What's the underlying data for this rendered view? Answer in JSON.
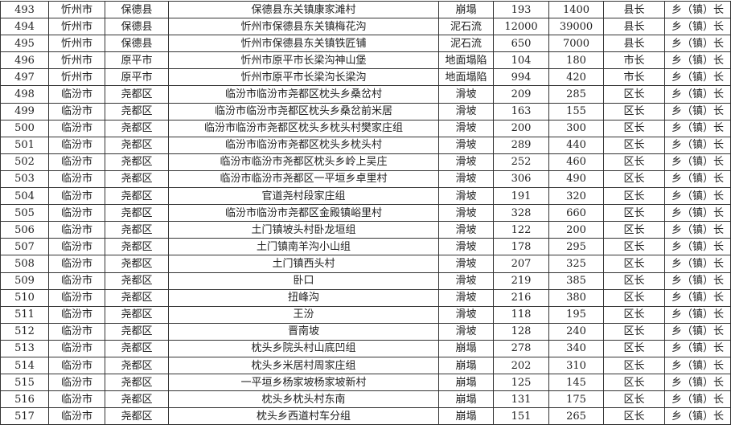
{
  "rows": [
    [
      "493",
      "忻州市",
      "保德县",
      "保德县东关镇康家滩村",
      "崩塌",
      "193",
      "1400",
      "县长",
      "乡（镇）长"
    ],
    [
      "494",
      "忻州市",
      "保德县",
      "忻州市保德县东关镇梅花沟",
      "泥石流",
      "12000",
      "39000",
      "县长",
      "乡（镇）长"
    ],
    [
      "495",
      "忻州市",
      "保德县",
      "忻州市保德县东关镇铁匠铺",
      "泥石流",
      "650",
      "7000",
      "县长",
      "乡（镇）长"
    ],
    [
      "496",
      "忻州市",
      "原平市",
      "忻州市原平市长梁沟神山堡",
      "地面塌陷",
      "104",
      "180",
      "市长",
      "乡（镇）长"
    ],
    [
      "497",
      "忻州市",
      "原平市",
      "忻州市原平市长梁沟长梁沟",
      "地面塌陷",
      "994",
      "420",
      "市长",
      "乡（镇）长"
    ],
    [
      "498",
      "临汾市",
      "尧都区",
      "临汾市临汾市尧都区枕头乡桑岔村",
      "滑坡",
      "209",
      "285",
      "区长",
      "乡（镇）长"
    ],
    [
      "499",
      "临汾市",
      "尧都区",
      "临汾市临汾市尧都区枕头乡桑岔前米居",
      "滑坡",
      "163",
      "155",
      "区长",
      "乡（镇）长"
    ],
    [
      "500",
      "临汾市",
      "尧都区",
      "临汾市临汾市尧都区枕头乡枕头村樊家庄组",
      "滑坡",
      "200",
      "300",
      "区长",
      "乡（镇）长"
    ],
    [
      "501",
      "临汾市",
      "尧都区",
      "临汾市临汾市尧都区枕头乡枕头村",
      "滑坡",
      "289",
      "440",
      "区长",
      "乡（镇）长"
    ],
    [
      "502",
      "临汾市",
      "尧都区",
      "临汾市临汾市尧都区枕头乡岭上吴庄",
      "滑坡",
      "252",
      "460",
      "区长",
      "乡（镇）长"
    ],
    [
      "503",
      "临汾市",
      "尧都区",
      "临汾市临汾市尧都区一平垣乡卓里村",
      "滑坡",
      "306",
      "490",
      "区长",
      "乡（镇）长"
    ],
    [
      "504",
      "临汾市",
      "尧都区",
      "官道尧村段家庄组",
      "滑坡",
      "191",
      "320",
      "区长",
      "乡（镇）长"
    ],
    [
      "505",
      "临汾市",
      "尧都区",
      "临汾市临汾市尧都区金殿镇峪里村",
      "滑坡",
      "328",
      "660",
      "区长",
      "乡（镇）长"
    ],
    [
      "506",
      "临汾市",
      "尧都区",
      "土门镇坡头村卧龙垣组",
      "滑坡",
      "122",
      "200",
      "区长",
      "乡（镇）长"
    ],
    [
      "507",
      "临汾市",
      "尧都区",
      "土门镇南羊沟小山组",
      "滑坡",
      "178",
      "295",
      "区长",
      "乡（镇）长"
    ],
    [
      "508",
      "临汾市",
      "尧都区",
      "土门镇西头村",
      "滑坡",
      "207",
      "325",
      "区长",
      "乡（镇）长"
    ],
    [
      "509",
      "临汾市",
      "尧都区",
      "卧口",
      "滑坡",
      "219",
      "385",
      "区长",
      "乡（镇）长"
    ],
    [
      "510",
      "临汾市",
      "尧都区",
      "扭峰沟",
      "滑坡",
      "216",
      "380",
      "区长",
      "乡（镇）长"
    ],
    [
      "511",
      "临汾市",
      "尧都区",
      "王汾",
      "滑坡",
      "118",
      "195",
      "区长",
      "乡（镇）长"
    ],
    [
      "512",
      "临汾市",
      "尧都区",
      "晋南坡",
      "滑坡",
      "128",
      "240",
      "区长",
      "乡（镇）长"
    ],
    [
      "513",
      "临汾市",
      "尧都区",
      "枕头乡院头村山底凹组",
      "崩塌",
      "278",
      "340",
      "区长",
      "乡（镇）长"
    ],
    [
      "514",
      "临汾市",
      "尧都区",
      "枕头乡米居村周家庄组",
      "崩塌",
      "202",
      "310",
      "区长",
      "乡（镇）长"
    ],
    [
      "515",
      "临汾市",
      "尧都区",
      "一平垣乡杨家坡杨家坡新村",
      "崩塌",
      "125",
      "145",
      "区长",
      "乡（镇）长"
    ],
    [
      "516",
      "临汾市",
      "尧都区",
      "枕头乡枕头村东南",
      "崩塌",
      "131",
      "175",
      "区长",
      "乡（镇）长"
    ],
    [
      "517",
      "临汾市",
      "尧都区",
      "枕头乡西道村车分组",
      "崩塌",
      "151",
      "265",
      "区长",
      "乡（镇）长"
    ]
  ]
}
